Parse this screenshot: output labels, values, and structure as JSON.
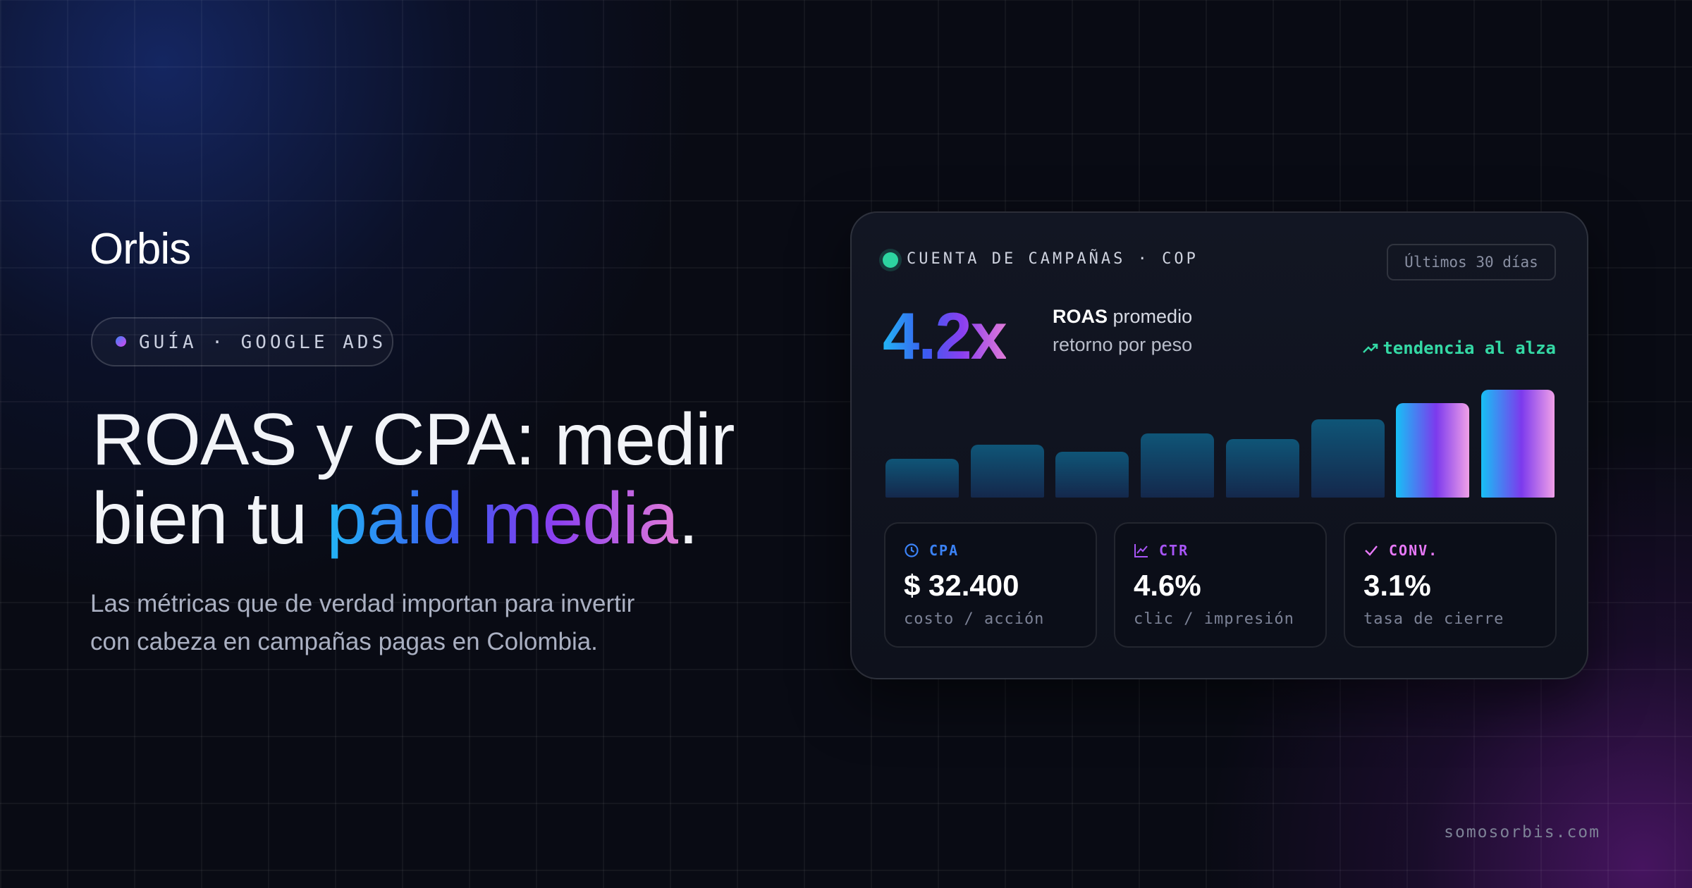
{
  "brand": "Orbis",
  "pill": "GUÍA · GOOGLE ADS",
  "headline": {
    "line1": "ROAS y CPA: medir",
    "line2": "bien tu",
    "highlight": "paid media",
    "end": "."
  },
  "subtitle": {
    "line1": "Las métricas que de verdad importan para invertir",
    "line2": "con cabeza en campañas pagas en Colombia."
  },
  "card": {
    "title": "CUENTA DE CAMPAÑAS · COP",
    "period": "Últimos 30 días",
    "roas": "4.2x",
    "roas_label": "ROAS",
    "roas_caption": "promedio",
    "roas_sub": "retorno por peso",
    "trend": "tendencia al alza",
    "stats": [
      {
        "label": "CPA",
        "value": "$ 32.400",
        "sub": "costo / acción",
        "color": "#3b82f6"
      },
      {
        "label": "CTR",
        "value": "4.6%",
        "sub": "clic / impresión",
        "color": "#a855f7"
      },
      {
        "label": "CONV.",
        "value": "3.1%",
        "sub": "tasa de cierre",
        "color": "#e879f9"
      }
    ]
  },
  "chart": {
    "type": "bar",
    "values": [
      34,
      46,
      40,
      56,
      51,
      68,
      82,
      94
    ],
    "styles": [
      "base",
      "base",
      "base",
      "base",
      "base",
      "base",
      "accent",
      "accent"
    ]
  },
  "footer": "somosorbis.com"
}
